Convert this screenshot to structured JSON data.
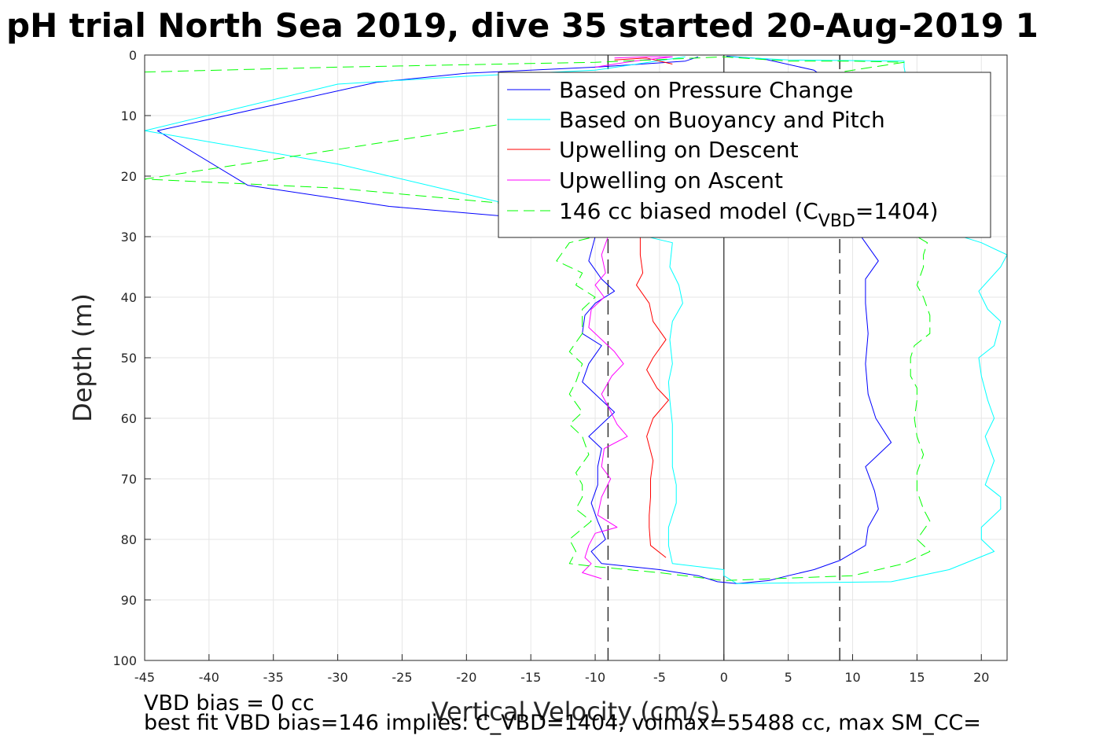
{
  "chart_data": {
    "type": "line",
    "title": "pH trial North Sea 2019, dive 35 started 20-Aug-2019 1",
    "xlabel": "Vertical Velocity (cm/s)",
    "ylabel": "Depth (m)",
    "xlim": [
      -45,
      22
    ],
    "ylim": [
      0,
      100
    ],
    "y_reversed": true,
    "grid": true,
    "legend_position": "top-right",
    "xticks": [
      "-45",
      "-40",
      "-35",
      "-30",
      "-25",
      "-20",
      "-15",
      "-10",
      "-5",
      "0",
      "5",
      "10",
      "15",
      "20"
    ],
    "yticks": [
      "0",
      "10",
      "20",
      "30",
      "40",
      "50",
      "60",
      "70",
      "80",
      "90",
      "100"
    ],
    "legend": {
      "pressure": "Based on Pressure Change",
      "buoyancy": "Based on Buoyancy and Pitch",
      "descent": "Upwelling on Descent",
      "ascent": "Upwelling on Ascent",
      "model_prefix": "146 cc biased model (C",
      "model_sub": "VBD",
      "model_suffix": "=1404)"
    },
    "reference_lines": {
      "solid_x": 0,
      "dashed_x": [
        -9,
        9
      ]
    },
    "series": [
      {
        "key": "pressure",
        "color": "#0000ff",
        "dash": "none",
        "points": [
          [
            -2,
            0.3
          ],
          [
            -3,
            1
          ],
          [
            -10,
            2
          ],
          [
            -20,
            3
          ],
          [
            -27,
            4.5
          ],
          [
            -44,
            12.5
          ],
          [
            -37,
            21.5
          ],
          [
            -26,
            25
          ],
          [
            -15,
            27
          ],
          [
            -10,
            30
          ],
          [
            -10.5,
            34
          ],
          [
            -9.5,
            37
          ],
          [
            -8.5,
            39
          ],
          [
            -10,
            41
          ],
          [
            -10.8,
            43
          ],
          [
            -11,
            46
          ],
          [
            -9.5,
            48
          ],
          [
            -10.5,
            51
          ],
          [
            -11,
            54
          ],
          [
            -9.5,
            57
          ],
          [
            -8.5,
            59
          ],
          [
            -9.5,
            61
          ],
          [
            -10.5,
            63
          ],
          [
            -9.5,
            65
          ],
          [
            -9.8,
            68
          ],
          [
            -9.8,
            71
          ],
          [
            -10.3,
            74
          ],
          [
            -9.8,
            77
          ],
          [
            -9.2,
            80
          ],
          [
            -10.3,
            82
          ],
          [
            -9.5,
            84
          ],
          [
            -5,
            85
          ],
          [
            -2,
            86
          ],
          [
            -0.5,
            87
          ],
          [
            1,
            87.3
          ],
          [
            3.5,
            86.8
          ],
          [
            5,
            86
          ],
          [
            7,
            85
          ],
          [
            9,
            83.5
          ],
          [
            11,
            81
          ],
          [
            11.2,
            78
          ],
          [
            12,
            75
          ],
          [
            11.7,
            72
          ],
          [
            11,
            68
          ],
          [
            13,
            64
          ],
          [
            11.8,
            60
          ],
          [
            11.2,
            56
          ],
          [
            11,
            51
          ],
          [
            11.2,
            46
          ],
          [
            11,
            41
          ],
          [
            11,
            37
          ],
          [
            12,
            34
          ],
          [
            11,
            31
          ],
          [
            10,
            28
          ]
        ]
      },
      {
        "key": "pressure_top",
        "color": "#0000ff",
        "dash": "none",
        "points": [
          [
            0.2,
            0.2
          ],
          [
            3,
            0.6
          ],
          [
            7,
            2.5
          ],
          [
            8,
            4
          ],
          [
            9,
            8
          ],
          [
            10,
            18
          ],
          [
            10,
            28
          ]
        ]
      },
      {
        "key": "buoyancy",
        "color": "#00ffff",
        "dash": "none",
        "points": [
          [
            -3,
            0.3
          ],
          [
            -10,
            2.5
          ],
          [
            -20,
            3.5
          ],
          [
            -30,
            4.8
          ],
          [
            -45,
            12.5
          ],
          [
            -30,
            18
          ],
          [
            -20,
            23
          ],
          [
            -10,
            28
          ],
          [
            -4,
            31
          ],
          [
            -4.2,
            35
          ],
          [
            -3.5,
            38
          ],
          [
            -3.2,
            41
          ],
          [
            -4,
            44
          ],
          [
            -4.2,
            47
          ],
          [
            -4,
            51
          ],
          [
            -4.3,
            54
          ],
          [
            -4.2,
            57
          ],
          [
            -4,
            61
          ],
          [
            -4,
            65
          ],
          [
            -4,
            68
          ],
          [
            -3.7,
            71
          ],
          [
            -3.7,
            74
          ],
          [
            -4.3,
            78
          ],
          [
            -4.3,
            81
          ],
          [
            -4,
            84
          ],
          [
            0,
            85
          ],
          [
            0,
            86
          ],
          [
            1,
            87.3
          ],
          [
            13,
            87
          ],
          [
            17.5,
            85
          ],
          [
            21,
            82
          ],
          [
            20,
            80
          ],
          [
            20,
            78
          ],
          [
            21.5,
            75
          ],
          [
            21.5,
            73
          ],
          [
            20.3,
            71
          ],
          [
            21,
            67
          ],
          [
            20.3,
            63
          ],
          [
            21,
            60
          ],
          [
            20.5,
            57
          ],
          [
            20,
            53
          ],
          [
            19.8,
            50
          ],
          [
            21,
            48
          ],
          [
            21.5,
            44
          ],
          [
            20.5,
            42
          ],
          [
            19.8,
            39
          ],
          [
            21.5,
            35
          ],
          [
            22,
            33
          ],
          [
            20,
            31
          ],
          [
            17,
            29
          ],
          [
            16,
            25
          ],
          [
            14,
            2
          ],
          [
            14,
            1
          ],
          [
            5,
            0.8
          ],
          [
            0.5,
            0.3
          ]
        ]
      },
      {
        "key": "descent",
        "color": "#ff0000",
        "dash": "none",
        "points": [
          [
            -6.5,
            30
          ],
          [
            -6.5,
            33
          ],
          [
            -6.3,
            36
          ],
          [
            -6.8,
            38
          ],
          [
            -5.8,
            41
          ],
          [
            -5.5,
            44
          ],
          [
            -4.5,
            47
          ],
          [
            -5.5,
            50
          ],
          [
            -6,
            52
          ],
          [
            -5.2,
            55
          ],
          [
            -4.3,
            57
          ],
          [
            -5.5,
            60
          ],
          [
            -6,
            63
          ],
          [
            -5.5,
            67
          ],
          [
            -5.7,
            70
          ],
          [
            -5.7,
            73
          ],
          [
            -5.8,
            76
          ],
          [
            -5.8,
            78
          ],
          [
            -5.7,
            81
          ],
          [
            -4.5,
            83
          ]
        ]
      },
      {
        "key": "descent_top",
        "color": "#ff0000",
        "dash": "none",
        "points": [
          [
            -8.5,
            0.8
          ],
          [
            -6,
            0.5
          ],
          [
            -4,
            1.5
          ]
        ]
      },
      {
        "key": "ascent",
        "color": "#ff00ff",
        "dash": "none",
        "points": [
          [
            -9,
            30
          ],
          [
            -9.5,
            33
          ],
          [
            -9.2,
            36
          ],
          [
            -10,
            38
          ],
          [
            -9.3,
            40
          ],
          [
            -10.3,
            42
          ],
          [
            -10.5,
            45
          ],
          [
            -9.5,
            47
          ],
          [
            -8.5,
            49
          ],
          [
            -7.8,
            51
          ],
          [
            -8.7,
            53
          ],
          [
            -9.5,
            56
          ],
          [
            -9,
            58
          ],
          [
            -8.3,
            61
          ],
          [
            -7.5,
            63
          ],
          [
            -9.3,
            65
          ],
          [
            -9.5,
            68
          ],
          [
            -8.8,
            70
          ],
          [
            -9.5,
            73
          ],
          [
            -9.8,
            76
          ],
          [
            -8.3,
            78
          ],
          [
            -10,
            79
          ],
          [
            -10.5,
            81
          ],
          [
            -10.8,
            83
          ],
          [
            -10.3,
            84
          ],
          [
            -11,
            85.5
          ],
          [
            -9.5,
            86.5
          ]
        ]
      },
      {
        "key": "ascent_top",
        "color": "#ff00ff",
        "dash": "none",
        "points": [
          [
            -8.5,
            0.5
          ],
          [
            -6,
            0.3
          ],
          [
            -4,
            0.3
          ],
          [
            -7,
            1
          ],
          [
            -10,
            2
          ]
        ]
      },
      {
        "key": "model",
        "color": "#00ff00",
        "dash": "14 7",
        "points": [
          [
            -45,
            2.8
          ],
          [
            -30,
            2
          ],
          [
            -10,
            1.2
          ],
          [
            0,
            0.3
          ],
          [
            5,
            1
          ],
          [
            10,
            1
          ],
          [
            14,
            1.2
          ],
          [
            -45,
            20.5
          ],
          [
            -30,
            22
          ],
          [
            -12,
            25.5
          ],
          [
            -10,
            30
          ],
          [
            -12,
            31
          ],
          [
            -13,
            34
          ],
          [
            -11,
            36
          ],
          [
            -11.5,
            38
          ],
          [
            -10,
            40
          ],
          [
            -11,
            42
          ],
          [
            -11,
            46
          ],
          [
            -12,
            49
          ],
          [
            -11,
            51
          ],
          [
            -11.5,
            54
          ],
          [
            -12,
            56
          ],
          [
            -11,
            59
          ],
          [
            -12,
            61
          ],
          [
            -11,
            63
          ],
          [
            -10.5,
            66
          ],
          [
            -11.5,
            69
          ],
          [
            -11,
            71
          ],
          [
            -11,
            73
          ],
          [
            -11.5,
            75
          ],
          [
            -10.3,
            77
          ],
          [
            -12,
            80
          ],
          [
            -11.5,
            82
          ],
          [
            -12,
            84
          ],
          [
            -10,
            84.5
          ],
          [
            -5,
            85.5
          ],
          [
            0,
            86.8
          ],
          [
            10,
            86
          ],
          [
            14,
            84
          ],
          [
            16,
            82
          ],
          [
            15,
            80
          ],
          [
            16,
            77
          ],
          [
            15.5,
            75
          ],
          [
            15,
            72
          ],
          [
            15,
            69
          ],
          [
            15.5,
            66
          ],
          [
            15,
            63
          ],
          [
            14.8,
            60
          ],
          [
            15,
            57
          ],
          [
            15,
            55
          ],
          [
            14.5,
            53
          ],
          [
            14.5,
            50
          ],
          [
            14.8,
            48
          ],
          [
            16,
            46
          ],
          [
            16,
            43
          ],
          [
            15.5,
            40
          ],
          [
            15,
            38
          ],
          [
            15.5,
            35
          ],
          [
            15.5,
            33
          ],
          [
            15.8,
            31
          ],
          [
            15,
            30
          ]
        ]
      }
    ]
  },
  "notes": {
    "vbd_bias": "VBD bias = 0 cc",
    "best_fit": "best fit VBD bias=146 implies: C_VBD=1404, volmax=55488 cc, max SM_CC="
  }
}
